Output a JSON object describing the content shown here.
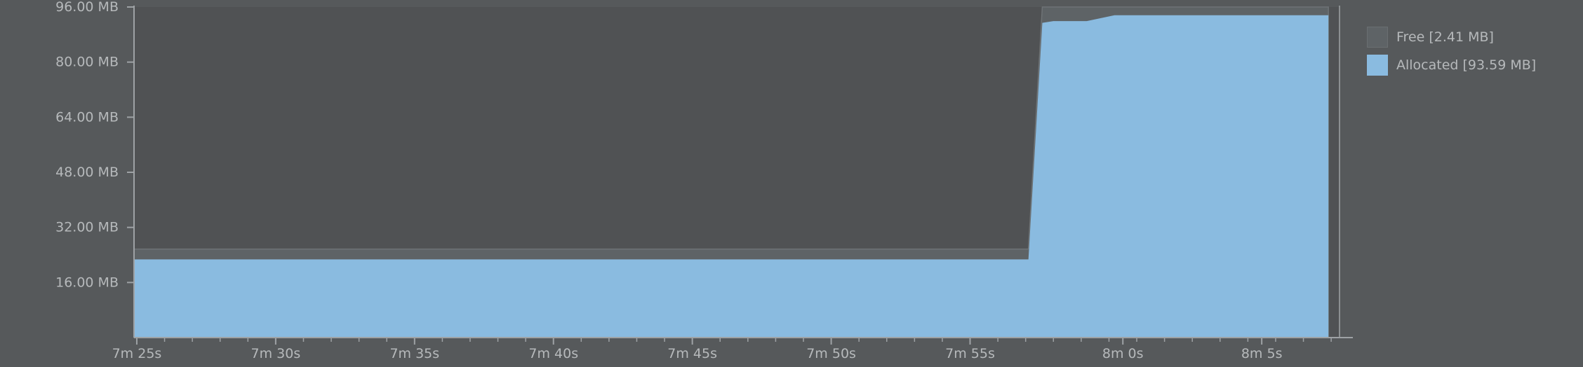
{
  "chart_data": {
    "type": "area",
    "title": "",
    "xlabel": "",
    "ylabel": "",
    "ylim": [
      0,
      96
    ],
    "xlim": [
      -1,
      433
    ],
    "y_ticks": [
      {
        "value": 16,
        "label": "16.00 MB"
      },
      {
        "value": 32,
        "label": "32.00 MB"
      },
      {
        "value": 48,
        "label": "48.00 MB"
      },
      {
        "value": 64,
        "label": "64.00 MB"
      },
      {
        "value": 80,
        "label": "80.00 MB"
      },
      {
        "value": 96,
        "label": "96.00 MB"
      }
    ],
    "x_ticks": [
      {
        "value": 0,
        "label": "7m 25s"
      },
      {
        "value": 50,
        "label": "7m 30s"
      },
      {
        "value": 100,
        "label": "7m 35s"
      },
      {
        "value": 150,
        "label": "7m 40s"
      },
      {
        "value": 200,
        "label": "7m 45s"
      },
      {
        "value": 250,
        "label": "7m 50s"
      },
      {
        "value": 300,
        "label": "7m 55s"
      },
      {
        "value": 355,
        "label": "8m 0s"
      },
      {
        "value": 405,
        "label": "8m 5s"
      }
    ],
    "x": [
      -1,
      321,
      326,
      330,
      336,
      342,
      352,
      360,
      370,
      380,
      390,
      400,
      410,
      420,
      429
    ],
    "series": [
      {
        "name": "Free",
        "label": "Free [2.41 MB]",
        "color": "#5e6366",
        "values": [
          25.7,
          25.7,
          96,
          96,
          96,
          96,
          96,
          96,
          96,
          96,
          96,
          96,
          96,
          96,
          96
        ]
      },
      {
        "name": "Allocated",
        "label": "Allocated [93.59 MB]",
        "color": "#8abbe0",
        "values": [
          22.7,
          22.7,
          91.4,
          91.9,
          91.9,
          91.9,
          93.6,
          93.6,
          93.6,
          93.6,
          93.6,
          93.6,
          93.6,
          93.6,
          93.6
        ]
      }
    ]
  },
  "colors": {
    "background": "#56595b",
    "plot_background": "#505254",
    "axis": "#9ea2a5",
    "text": "#b6b9bb"
  }
}
